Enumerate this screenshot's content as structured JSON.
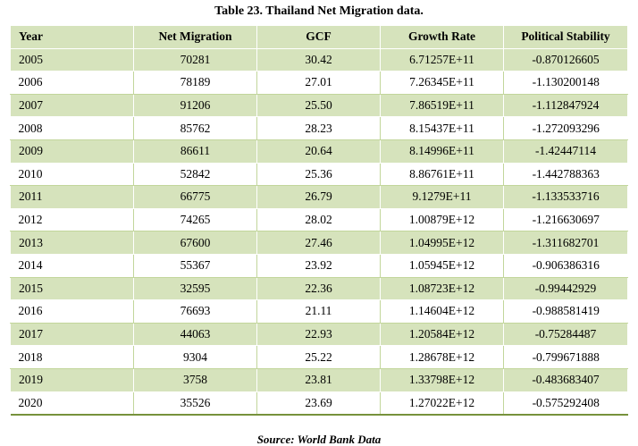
{
  "caption": "Table 23. Thailand Net Migration data.",
  "columns": [
    "Year",
    "Net Migration",
    "GCF",
    "Growth Rate",
    "Political Stability"
  ],
  "rows": [
    [
      "2005",
      "70281",
      "30.42",
      "6.71257E+11",
      "-0.870126605"
    ],
    [
      "2006",
      "78189",
      "27.01",
      "7.26345E+11",
      "-1.130200148"
    ],
    [
      "2007",
      "91206",
      "25.50",
      "7.86519E+11",
      "-1.112847924"
    ],
    [
      "2008",
      "85762",
      "28.23",
      "8.15437E+11",
      "-1.272093296"
    ],
    [
      "2009",
      "86611",
      "20.64",
      "8.14996E+11",
      "-1.42447114"
    ],
    [
      "2010",
      "52842",
      "25.36",
      "8.86761E+11",
      "-1.442788363"
    ],
    [
      "2011",
      "66775",
      "26.79",
      "9.1279E+11",
      "-1.133533716"
    ],
    [
      "2012",
      "74265",
      "28.02",
      "1.00879E+12",
      "-1.216630697"
    ],
    [
      "2013",
      "67600",
      "27.46",
      "1.04995E+12",
      "-1.311682701"
    ],
    [
      "2014",
      "55367",
      "23.92",
      "1.05945E+12",
      "-0.906386316"
    ],
    [
      "2015",
      "32595",
      "22.36",
      "1.08723E+12",
      "-0.99442929"
    ],
    [
      "2016",
      "76693",
      "21.11",
      "1.14604E+12",
      "-0.988581419"
    ],
    [
      "2017",
      "44063",
      "22.93",
      "1.20584E+12",
      "-0.75284487"
    ],
    [
      "2018",
      "9304",
      "25.22",
      "1.28678E+12",
      "-0.799671888"
    ],
    [
      "2019",
      "3758",
      "23.81",
      "1.33798E+12",
      "-0.483683407"
    ],
    [
      "2020",
      "35526",
      "23.69",
      "1.27022E+12",
      "-0.575292408"
    ]
  ],
  "source": "Source: World Bank Data",
  "colors": {
    "band": "#d6e3bc",
    "rule": "#c2d69b",
    "bottom_rule": "#76923c"
  }
}
